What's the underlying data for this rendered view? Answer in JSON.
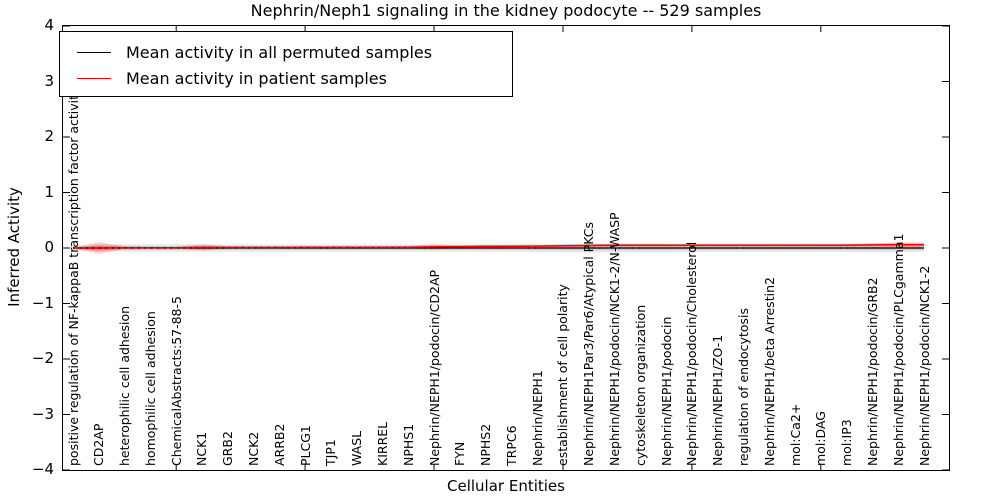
{
  "title": "Nephrin/Neph1 signaling in the kidney podocyte -- 529 samples",
  "axes": {
    "ylabel": "Inferred Activity",
    "xlabel": "Cellular Entities",
    "yticks": [
      "4",
      "3",
      "2",
      "1",
      "0",
      "−1",
      "−2",
      "−3",
      "−4"
    ]
  },
  "legend": {
    "items": [
      {
        "label": "Mean activity in all permuted samples",
        "color": "#000000"
      },
      {
        "label": "Mean activity in patient samples",
        "color": "#ff0000"
      }
    ]
  },
  "chart_data": {
    "type": "line",
    "title": "Nephrin/Neph1 signaling in the kidney podocyte -- 529 samples",
    "xlabel": "Cellular Entities",
    "ylabel": "Inferred Activity",
    "ylim": [
      -4,
      4
    ],
    "grid": false,
    "legend_position": "upper left",
    "zero_line": {
      "style": "dotted",
      "color": "#000000",
      "y": 0
    },
    "categories": [
      "positive regulation of NF-kappaB transcription factor activity",
      "CD2AP",
      "heterophilic cell adhesion",
      "homophilic cell adhesion",
      "ChemicalAbstracts:57-88-5",
      "NCK1",
      "GRB2",
      "NCK2",
      "ARRB2",
      "PLCG1",
      "TJP1",
      "WASL",
      "KIRREL",
      "NPHS1",
      "Nephrin/NEPH1/podocin/CD2AP",
      "FYN",
      "NPHS2",
      "TRPC6",
      "Nephrin/NEPH1",
      "establishment of cell polarity",
      "Nephrin/NEPH1Par3/Par6/Atypical PKCs",
      "Nephrin/NEPH1/podocin/NCK1-2/N-WASP",
      "cytoskeleton organization",
      "Nephrin/NEPH1/podocin",
      "Nephrin/NEPH1/podocin/Cholesterol",
      "Nephrin/NEPH1/ZO-1",
      "regulation of endocytosis",
      "Nephrin/NEPH1/beta Arrestin2",
      "mol:Ca2+",
      "mol:DAG",
      "mol:IP3",
      "Nephrin/NEPH1/podocin/GRB2",
      "Nephrin/NEPH1/podocin/PLCgamma1",
      "Nephrin/NEPH1/podocin/NCK1-2"
    ],
    "series": [
      {
        "name": "Mean activity in all permuted samples",
        "color": "#000000",
        "values": [
          0,
          0,
          0,
          0,
          0,
          0,
          0,
          0,
          0,
          0,
          0,
          0,
          0,
          0,
          0,
          0,
          0,
          0,
          0,
          0,
          0,
          0,
          0,
          0,
          0,
          0,
          0,
          0,
          0,
          0,
          0,
          0,
          0,
          0
        ]
      },
      {
        "name": "Mean activity in patient samples",
        "color": "#ff0000",
        "values": [
          0.0,
          0.0,
          0.005,
          0.005,
          0.005,
          0.01,
          0.01,
          0.01,
          0.01,
          0.012,
          0.012,
          0.012,
          0.015,
          0.015,
          0.02,
          0.025,
          0.03,
          0.03,
          0.035,
          0.04,
          0.045,
          0.05,
          0.05,
          0.05,
          0.05,
          0.05,
          0.05,
          0.05,
          0.05,
          0.05,
          0.05,
          0.055,
          0.06,
          0.06
        ]
      }
    ],
    "bands": [
      {
        "name": "permuted std band",
        "color": "#000000",
        "opacity": 0.1,
        "halfwidths": [
          0.03,
          0.06,
          0.065,
          0.065,
          0.065,
          0.065,
          0.065,
          0.065,
          0.065,
          0.065,
          0.065,
          0.065,
          0.065,
          0.065,
          0.065,
          0.065,
          0.065,
          0.065,
          0.07,
          0.075,
          0.08,
          0.08,
          0.08,
          0.075,
          0.07,
          0.07,
          0.07,
          0.07,
          0.07,
          0.07,
          0.07,
          0.08,
          0.08,
          0.065
        ]
      },
      {
        "name": "patient std band",
        "color": "#ff0000",
        "opacity": 0.22,
        "halfwidths": [
          0.012,
          0.1,
          0.03,
          0.018,
          0.018,
          0.055,
          0.025,
          0.018,
          0.018,
          0.018,
          0.018,
          0.018,
          0.018,
          0.022,
          0.045,
          0.022,
          0.018,
          0.018,
          0.018,
          0.022,
          0.025,
          0.025,
          0.025,
          0.025,
          0.025,
          0.025,
          0.025,
          0.025,
          0.025,
          0.025,
          0.025,
          0.028,
          0.042,
          0.038
        ]
      }
    ]
  }
}
